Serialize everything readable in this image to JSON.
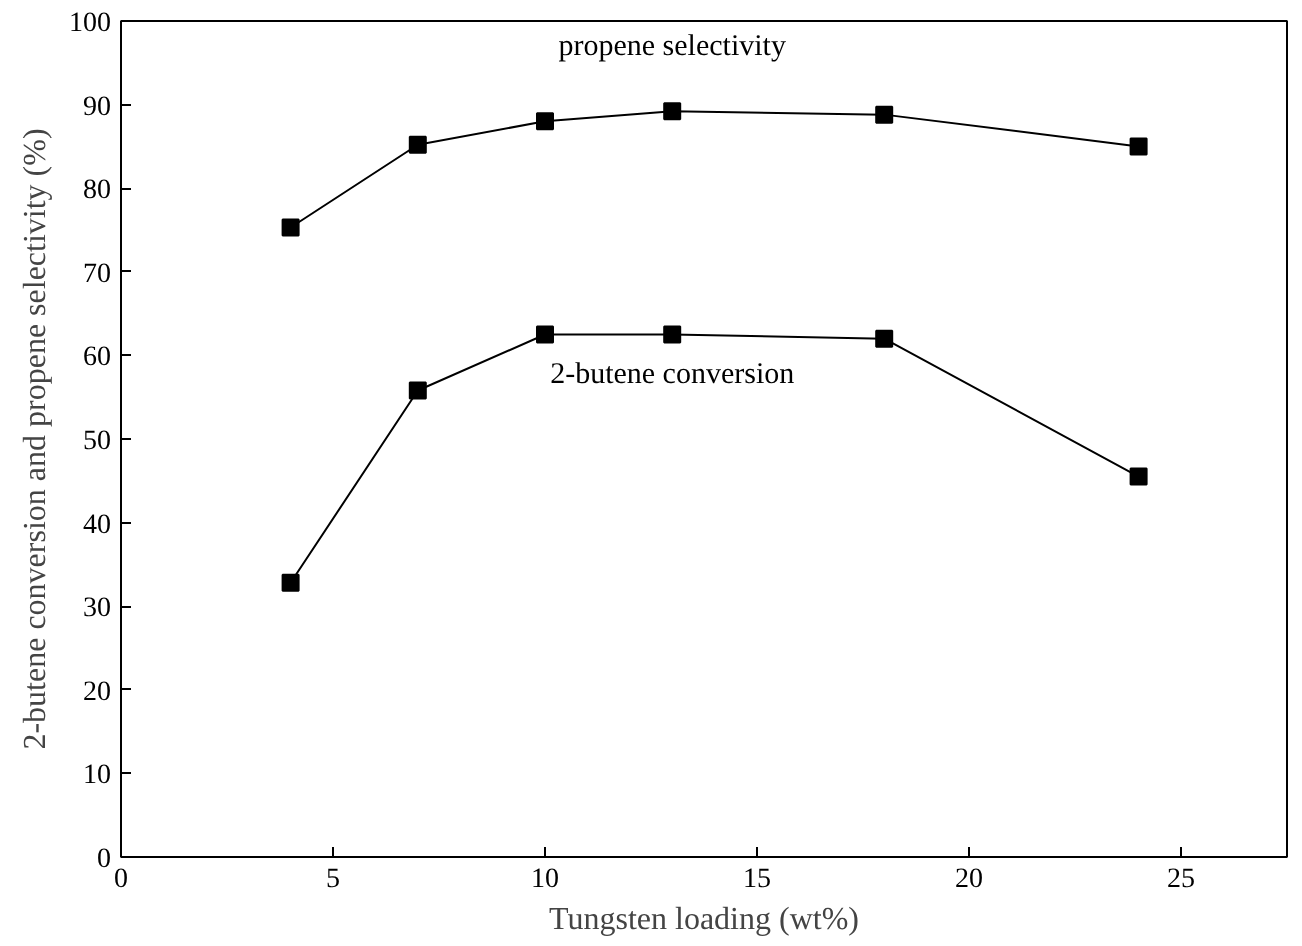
{
  "chart_data": {
    "type": "line",
    "xlabel": "Tungsten loading (wt%)",
    "ylabel": "2-butene conversion and propene selectivity (%)",
    "x": [
      4,
      7,
      10,
      13,
      18,
      24
    ],
    "series": [
      {
        "name": "propene selectivity",
        "color": "#000000",
        "values": [
          75.3,
          85.2,
          88.0,
          89.2,
          88.8,
          85.0
        ]
      },
      {
        "name": "2-butene conversion",
        "color": "#000000",
        "values": [
          32.8,
          55.8,
          62.5,
          62.5,
          62.0,
          45.5
        ]
      }
    ],
    "xlim": [
      0,
      27.5
    ],
    "xticks": [
      0,
      5,
      10,
      15,
      20,
      25
    ],
    "ylim": [
      0,
      100
    ],
    "yticks": [
      0,
      10,
      20,
      30,
      40,
      50,
      60,
      70,
      80,
      90,
      100
    ],
    "grid": false,
    "legend": false,
    "marker": "square",
    "line_style": "solid"
  }
}
